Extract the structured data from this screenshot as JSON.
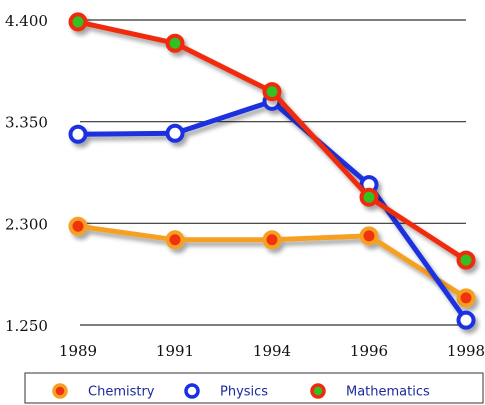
{
  "chart_data": {
    "type": "line",
    "categories": [
      "1989",
      "1991",
      "1994",
      "1996",
      "1998"
    ],
    "series": [
      {
        "name": "Chemistry",
        "color": "#f5a020",
        "marker_fill": "#f03010",
        "values": [
          2270,
          2130,
          2130,
          2170,
          1530
        ]
      },
      {
        "name": "Physics",
        "color": "#1a30e0",
        "marker_fill": "#ffffff",
        "values": [
          3220,
          3230,
          3560,
          2700,
          1300
        ]
      },
      {
        "name": "Mathematics",
        "color": "#f02a10",
        "marker_fill": "#30c020",
        "values": [
          4380,
          4160,
          3660,
          2570,
          1920
        ]
      }
    ],
    "ylim": [
      1250,
      4400
    ],
    "yticks": [
      {
        "value": 1250,
        "label": "1.250"
      },
      {
        "value": 2300,
        "label": "2.300"
      },
      {
        "value": 3350,
        "label": "3.350"
      },
      {
        "value": 4400,
        "label": "4.400"
      }
    ],
    "grid": true,
    "legend": "bottom"
  }
}
